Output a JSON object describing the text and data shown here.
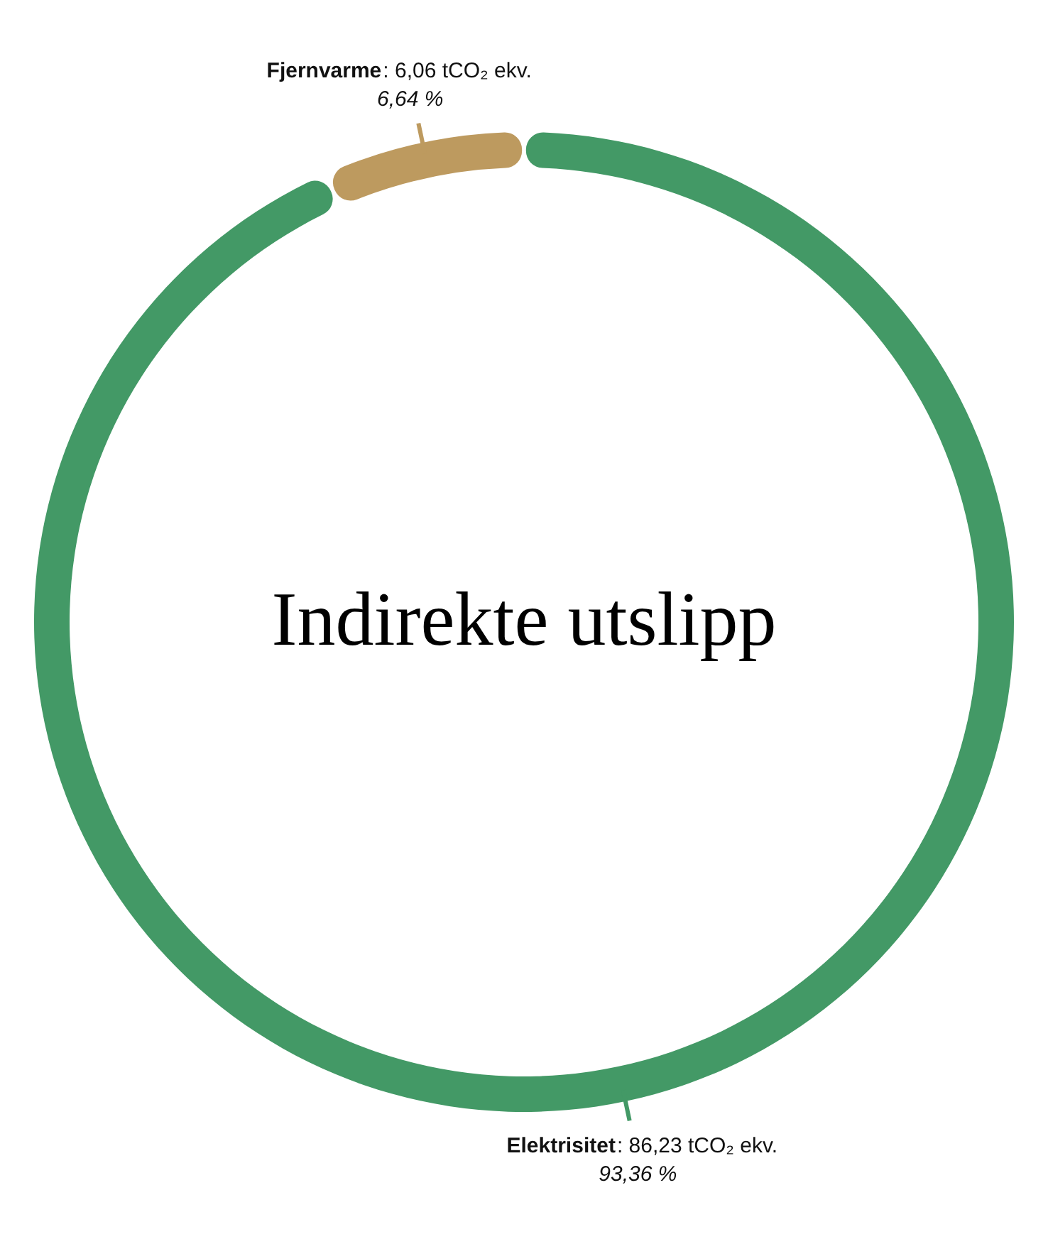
{
  "chart_data": {
    "type": "donut",
    "title": "Indirekte utslipp",
    "categories": [
      "Elektrisitet",
      "Fjernvarme"
    ],
    "values": [
      93.36,
      6.64
    ],
    "colors": [
      "#439966",
      "#bd9a5f"
    ],
    "value_labels": [
      ": 86,23 tCO₂ ekv.\n93,36 %",
      ": 6,06 tCO₂ ekv.\n6,64 %"
    ]
  }
}
